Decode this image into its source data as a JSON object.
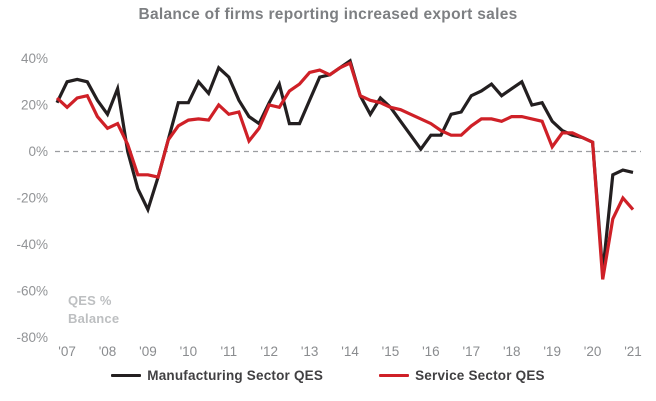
{
  "title": "Balance of firms reporting increased export sales",
  "note": {
    "line1": "QES %",
    "line2": "Balance"
  },
  "legend": [
    {
      "label": "Manufacturing Sector QES",
      "color": "#231f20"
    },
    {
      "label": "Service Sector QES",
      "color": "#cf2027"
    }
  ],
  "chart_data": {
    "type": "line",
    "title": "Balance of firms reporting increased export sales",
    "x_unit": "quarter",
    "x": [
      "2006 Q4",
      "2007 Q1",
      "2007 Q2",
      "2007 Q3",
      "2007 Q4",
      "2008 Q1",
      "2008 Q2",
      "2008 Q3",
      "2008 Q4",
      "2009 Q1",
      "2009 Q2",
      "2009 Q3",
      "2009 Q4",
      "2010 Q1",
      "2010 Q2",
      "2010 Q3",
      "2010 Q4",
      "2011 Q1",
      "2011 Q2",
      "2011 Q3",
      "2011 Q4",
      "2012 Q1",
      "2012 Q2",
      "2012 Q3",
      "2012 Q4",
      "2013 Q1",
      "2013 Q2",
      "2013 Q3",
      "2013 Q4",
      "2014 Q1",
      "2014 Q2",
      "2014 Q3",
      "2014 Q4",
      "2015 Q1",
      "2015 Q2",
      "2015 Q3",
      "2015 Q4",
      "2016 Q1",
      "2016 Q2",
      "2016 Q3",
      "2016 Q4",
      "2017 Q1",
      "2017 Q2",
      "2017 Q3",
      "2017 Q4",
      "2018 Q1",
      "2018 Q2",
      "2018 Q3",
      "2018 Q4",
      "2019 Q1",
      "2019 Q2",
      "2019 Q3",
      "2019 Q4",
      "2020 Q1",
      "2020 Q2",
      "2020 Q3",
      "2020 Q4",
      "2021 Q1"
    ],
    "x_tick_labels": [
      "'07",
      "'08",
      "'09",
      "'10",
      "'11",
      "'12",
      "'13",
      "'14",
      "'15",
      "'16",
      "'17",
      "'18",
      "'19",
      "'20",
      "'21"
    ],
    "y_ticks": [
      40,
      20,
      0,
      -20,
      -40,
      -60,
      -80
    ],
    "y_tick_labels": [
      "40%",
      "20%",
      "0%",
      "-20%",
      "-40%",
      "-60%",
      "-80%"
    ],
    "ylim": [
      -80,
      42
    ],
    "zero_line": "dashed",
    "grid": "off",
    "legend_position": "bottom",
    "ylabel_note": "QES % Balance",
    "series": [
      {
        "name": "Manufacturing Sector QES",
        "color": "#231f20",
        "values": [
          21,
          30,
          31,
          30,
          22,
          16,
          27,
          0,
          -16,
          -25,
          -11,
          5,
          21,
          21,
          30,
          25,
          36,
          32,
          22,
          15,
          12,
          21,
          29,
          12,
          12,
          22,
          32,
          33,
          36,
          39,
          24,
          16,
          23,
          19,
          13,
          7,
          1,
          7,
          7,
          16,
          17,
          24,
          26,
          29,
          24,
          27,
          30,
          20,
          21,
          13,
          9,
          7,
          6,
          4,
          -52,
          -10,
          -8,
          -9
        ]
      },
      {
        "name": "Service Sector QES",
        "color": "#cf2027",
        "values": [
          23,
          19,
          23,
          24,
          15,
          10,
          12,
          3,
          -10,
          -10,
          -11,
          5,
          11,
          13.5,
          14,
          13.5,
          20,
          16,
          17,
          4.5,
          10,
          20,
          19,
          26,
          29,
          34,
          35,
          33,
          36,
          38,
          24,
          22,
          21,
          19,
          18,
          16,
          14,
          12,
          9,
          7,
          7,
          11,
          14,
          14,
          13,
          15,
          15,
          14,
          13,
          2,
          8,
          8,
          6,
          4,
          -55,
          -29,
          -20,
          -25
        ]
      }
    ]
  }
}
